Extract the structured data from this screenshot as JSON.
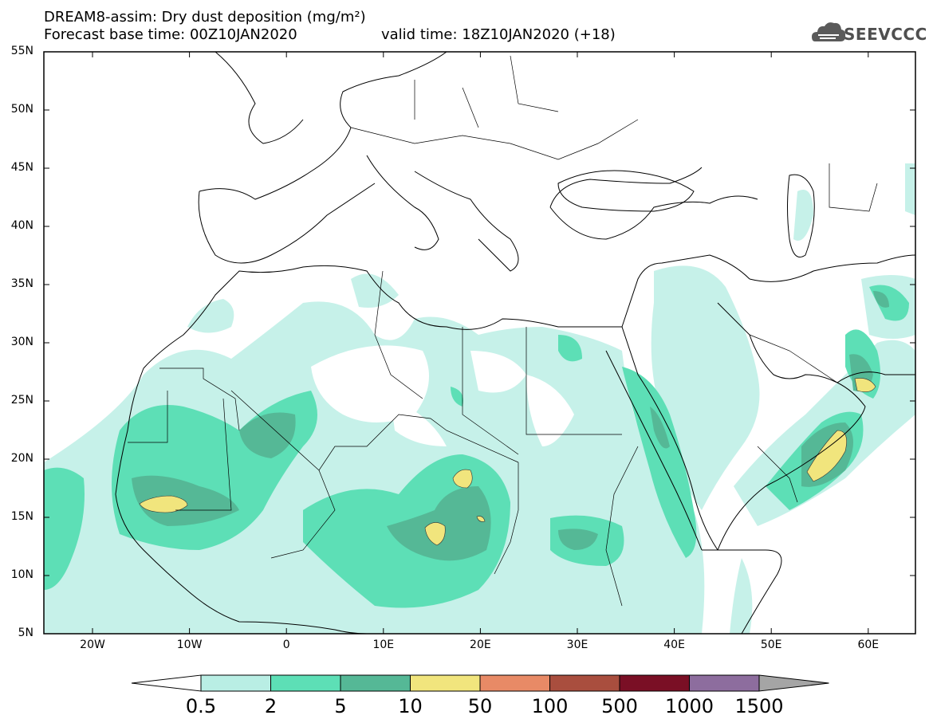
{
  "header": {
    "line1": "DREAM8-assim: Dry dust deposition (mg/m²)",
    "line2a": "Forecast base time: 00Z10JAN2020",
    "line2b": "valid time: 18Z10JAN2020 (+18)"
  },
  "logo": {
    "text": "SEEVCCC",
    "icon": "cloud-logo-icon"
  },
  "axes": {
    "lat_labels": [
      "55N",
      "50N",
      "45N",
      "40N",
      "35N",
      "30N",
      "25N",
      "20N",
      "15N",
      "10N",
      "5N"
    ],
    "lon_labels": [
      "20W",
      "10W",
      "0",
      "10E",
      "20E",
      "30E",
      "40E",
      "50E",
      "60E"
    ]
  },
  "colorbar": {
    "labels": [
      "0.5",
      "2",
      "5",
      "10",
      "50",
      "100",
      "500",
      "1000",
      "1500"
    ],
    "colors": [
      "#b9eee4",
      "#5ddfb6",
      "#55b896",
      "#f1e57d",
      "#e88a66",
      "#a94e3e",
      "#7a0f25",
      "#8d6d9e",
      "#a5a5a5"
    ]
  },
  "map_colors": {
    "light": "#c6f1e9",
    "medium": "#5ddfb6",
    "dark": "#55b896",
    "yellow": "#f1e57d"
  }
}
